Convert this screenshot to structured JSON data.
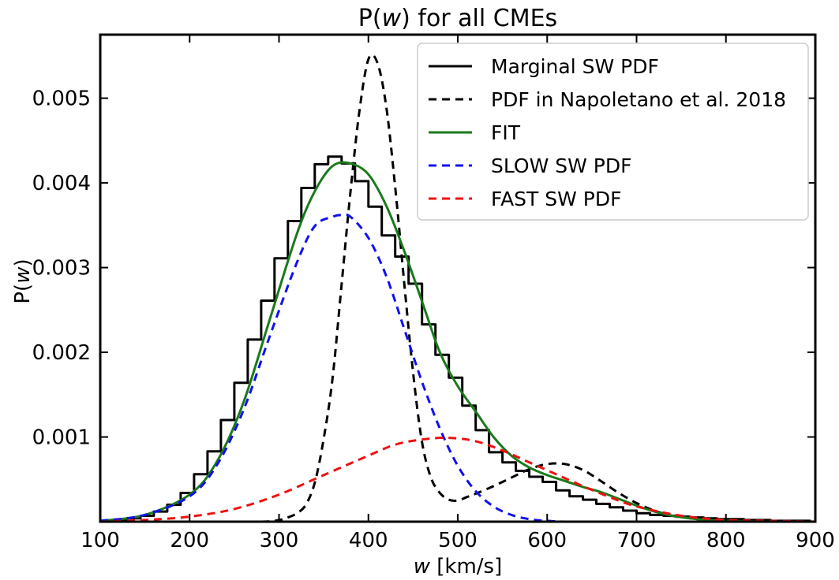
{
  "chart_data": {
    "type": "line",
    "title": {
      "prefix": "P(",
      "var": "w",
      "suffix": ") for all CMEs"
    },
    "xlabel": {
      "var": "w",
      "suffix": " [km/s]"
    },
    "ylabel": {
      "prefix": "P(",
      "var": "w",
      "suffix": ")"
    },
    "xlim": [
      100,
      900
    ],
    "ylim": [
      0,
      0.00575
    ],
    "xticks": [
      100,
      200,
      300,
      400,
      500,
      600,
      700,
      800,
      900
    ],
    "xtick_labels": [
      "100",
      "200",
      "300",
      "400",
      "500",
      "600",
      "700",
      "800",
      "900"
    ],
    "yticks": [
      0.001,
      0.002,
      0.003,
      0.004,
      0.005
    ],
    "ytick_labels": [
      "0.001",
      "0.002",
      "0.003",
      "0.004",
      "0.005"
    ],
    "grid": false,
    "legend_position": "top-right",
    "series": [
      {
        "name": "Marginal SW PDF",
        "kind": "step",
        "color": "#000000",
        "dash": "solid",
        "bin_width": 15,
        "bin_left_edges": [
          100,
          115,
          130,
          145,
          160,
          175,
          190,
          205,
          220,
          235,
          250,
          265,
          280,
          295,
          310,
          325,
          340,
          355,
          370,
          385,
          400,
          415,
          430,
          445,
          460,
          475,
          490,
          505,
          520,
          535,
          550,
          565,
          580,
          595,
          610,
          625,
          640,
          655,
          670,
          685,
          700,
          715,
          730,
          745,
          760,
          775,
          790,
          805,
          820,
          835,
          850,
          865,
          880
        ],
        "values": [
          1e-05,
          2e-05,
          4e-05,
          7e-05,
          0.00012,
          0.0002,
          0.00034,
          0.00056,
          0.00083,
          0.0012,
          0.00164,
          0.00215,
          0.00261,
          0.00311,
          0.00355,
          0.00394,
          0.00422,
          0.00431,
          0.00423,
          0.00402,
          0.00372,
          0.00338,
          0.00313,
          0.00281,
          0.00233,
          0.00197,
          0.0017,
          0.00137,
          0.00108,
          0.00082,
          0.0007,
          0.0006,
          0.00053,
          0.00047,
          0.00037,
          0.0003,
          0.00026,
          0.00021,
          0.00017,
          0.00013,
          0.0001,
          8e-05,
          7e-05,
          6e-05,
          5e-05,
          4e-05,
          3e-05,
          3e-05,
          2e-05,
          2e-05,
          1e-05,
          1e-05,
          1e-05
        ]
      },
      {
        "name": "PDF in Napoletano et al. 2018",
        "kind": "line",
        "color": "#000000",
        "dash": "dashed",
        "x": [
          100,
          200,
          280,
          300,
          310,
          320,
          330,
          340,
          350,
          360,
          370,
          380,
          390,
          400,
          410,
          420,
          430,
          440,
          450,
          460,
          470,
          480,
          490,
          500,
          510,
          520,
          540,
          560,
          580,
          600,
          620,
          640,
          660,
          680,
          700,
          720,
          740,
          760,
          780,
          800,
          850,
          900
        ],
        "y": [
          0,
          0,
          0,
          2e-05,
          5e-05,
          0.0001,
          0.0002,
          0.00046,
          0.00098,
          0.0017,
          0.0028,
          0.0039,
          0.00485,
          0.00546,
          0.00542,
          0.0049,
          0.00395,
          0.00283,
          0.00176,
          0.00094,
          0.00052,
          0.00034,
          0.00026,
          0.00025,
          0.00029,
          0.00033,
          0.00042,
          0.00052,
          0.00062,
          0.00068,
          0.00068,
          0.00061,
          0.00048,
          0.00034,
          0.00022,
          0.00013,
          7e-05,
          4e-05,
          2e-05,
          1e-05,
          0,
          0
        ]
      },
      {
        "name": "FIT",
        "kind": "line",
        "color": "#1a7a1a",
        "dash": "solid",
        "x": [
          100,
          150,
          200,
          230,
          260,
          290,
          320,
          340,
          360,
          380,
          400,
          420,
          440,
          460,
          480,
          500,
          520,
          540,
          560,
          580,
          600,
          620,
          640,
          660,
          680,
          700,
          720,
          740,
          760,
          780,
          800,
          850,
          900
        ],
        "y": [
          1e-05,
          8e-05,
          0.00032,
          0.0007,
          0.0014,
          0.0024,
          0.0034,
          0.0039,
          0.0042,
          0.00423,
          0.0041,
          0.00373,
          0.0032,
          0.0026,
          0.002,
          0.0016,
          0.0013,
          0.001,
          0.00078,
          0.00064,
          0.00055,
          0.00048,
          0.00041,
          0.00035,
          0.00027,
          0.00019,
          0.00012,
          7e-05,
          4e-05,
          2e-05,
          1e-05,
          0,
          0
        ]
      },
      {
        "name": "SLOW SW PDF",
        "kind": "line",
        "color": "#1010ee",
        "dash": "dashed",
        "x": [
          100,
          150,
          200,
          230,
          260,
          290,
          320,
          340,
          360,
          370,
          380,
          400,
          420,
          440,
          460,
          480,
          500,
          520,
          540,
          560,
          580,
          600,
          620,
          650,
          700
        ],
        "y": [
          1e-05,
          8e-05,
          0.0003,
          0.00066,
          0.00131,
          0.0022,
          0.00306,
          0.00349,
          0.0036,
          0.00362,
          0.0036,
          0.00335,
          0.0029,
          0.00228,
          0.00165,
          0.0011,
          0.00066,
          0.00036,
          0.00018,
          8e-05,
          3e-05,
          1e-05,
          0,
          0,
          0
        ]
      },
      {
        "name": "FAST SW PDF",
        "kind": "line",
        "color": "#ee1010",
        "dash": "dashed",
        "x": [
          100,
          150,
          200,
          250,
          300,
          350,
          400,
          430,
          460,
          490,
          520,
          550,
          580,
          610,
          640,
          670,
          700,
          750,
          800,
          850,
          900
        ],
        "y": [
          0,
          2e-05,
          6e-05,
          0.00015,
          0.00032,
          0.00055,
          0.00078,
          0.00091,
          0.00097,
          0.00099,
          0.00095,
          0.00084,
          0.0007,
          0.00056,
          0.00042,
          0.00029,
          0.00018,
          7e-05,
          2e-05,
          1e-05,
          0
        ]
      }
    ]
  }
}
